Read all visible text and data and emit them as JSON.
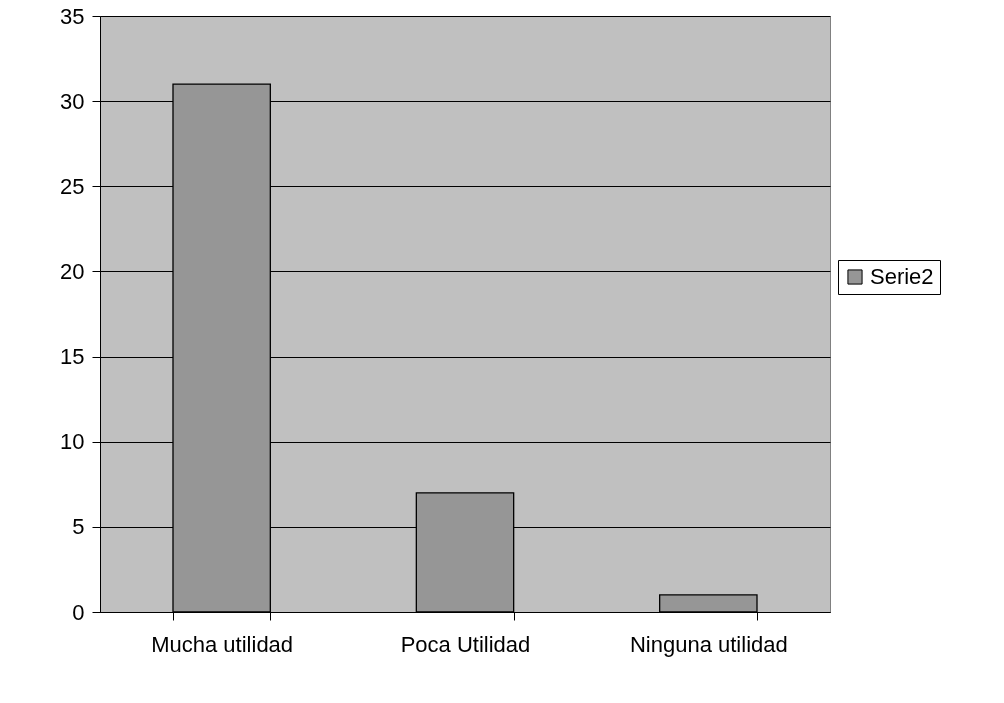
{
  "chart_data": {
    "type": "bar",
    "categories": [
      "Mucha utilidad",
      "Poca Utilidad",
      "Ninguna utilidad"
    ],
    "series": [
      {
        "name": "Serie2",
        "color": "#969696",
        "values": [
          31,
          7,
          1
        ]
      }
    ],
    "ylim": [
      0,
      35
    ],
    "yticks": [
      0,
      5,
      10,
      15,
      20,
      25,
      30,
      35
    ],
    "grid": "y",
    "legend": "right"
  }
}
